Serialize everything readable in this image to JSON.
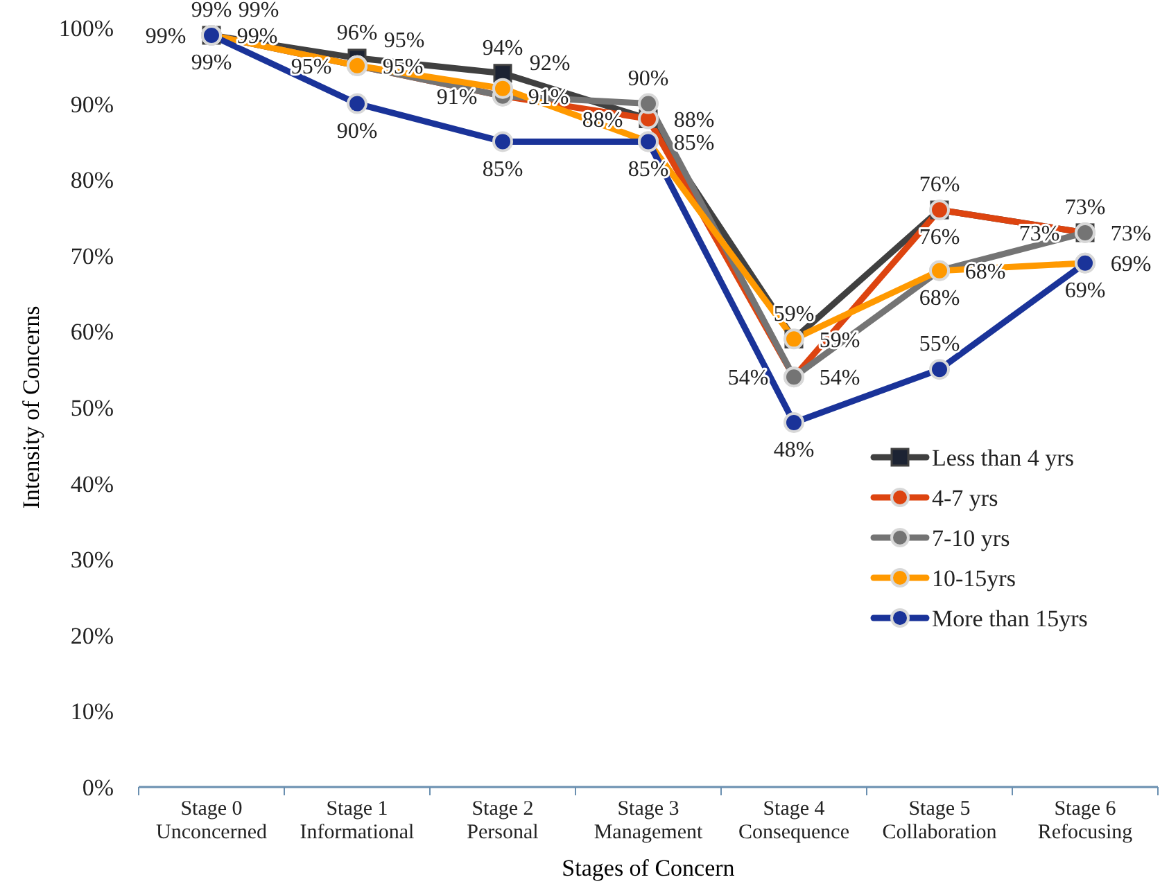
{
  "chart_data": {
    "type": "line",
    "xlabel": "Stages of Concern",
    "ylabel": "Intensity of Concerns",
    "categories": [
      "Stage 0\nUnconcerned",
      "Stage 1\nInformational",
      "Stage 2\nPersonal",
      "Stage 3\nManagement",
      "Stage 4\nConsequence",
      "Stage 5\nCollaboration",
      "Stage 6\nRefocusing"
    ],
    "series": [
      {
        "name": "Less than 4 yrs",
        "color": "#404040",
        "marker": "square",
        "values": [
          99,
          96,
          94,
          88,
          59,
          76,
          73
        ],
        "value_labels": [
          "99%",
          "96%",
          "94%",
          "88%",
          "59%",
          "76%",
          "73%"
        ]
      },
      {
        "name": "4-7 yrs",
        "color": "#dd4410",
        "marker": "circle",
        "values": [
          99,
          95,
          91,
          88,
          54,
          76,
          73
        ],
        "value_labels": [
          "99%",
          "95%",
          "91%",
          "88%",
          "54%",
          "76%",
          "73%"
        ]
      },
      {
        "name": "7-10 yrs",
        "color": "#747474",
        "marker": "circle",
        "values": [
          99,
          95,
          91,
          90,
          54,
          68,
          73
        ],
        "value_labels": [
          "99%",
          "95%",
          "91%",
          "90%",
          "54%",
          "68%",
          "73%"
        ]
      },
      {
        "name": "10-15yrs",
        "color": "#ff9900",
        "marker": "circle",
        "values": [
          99,
          95,
          92,
          85,
          59,
          68,
          69
        ],
        "value_labels": [
          "99%",
          "95%",
          "92%",
          "85%",
          "59%",
          "68%",
          "69%"
        ]
      },
      {
        "name": "More than 15yrs",
        "color": "#1a3399",
        "marker": "circle",
        "values": [
          99,
          90,
          85,
          85,
          48,
          55,
          69
        ],
        "value_labels": [
          "99%",
          "90%",
          "85%",
          "85%",
          "48%",
          "55%",
          "69%"
        ]
      }
    ],
    "ylim": [
      0,
      100
    ],
    "yticks": [
      {
        "value": 0,
        "label": "0%"
      },
      {
        "value": 10,
        "label": "10%"
      },
      {
        "value": 20,
        "label": "20%"
      },
      {
        "value": 30,
        "label": "30%"
      },
      {
        "value": 40,
        "label": "40%"
      },
      {
        "value": 50,
        "label": "50%"
      },
      {
        "value": 60,
        "label": "60%"
      },
      {
        "value": 70,
        "label": "70%"
      },
      {
        "value": 80,
        "label": "80%"
      },
      {
        "value": 90,
        "label": "90%"
      },
      {
        "value": 100,
        "label": "100%"
      }
    ],
    "legend": "right",
    "grid": false
  }
}
